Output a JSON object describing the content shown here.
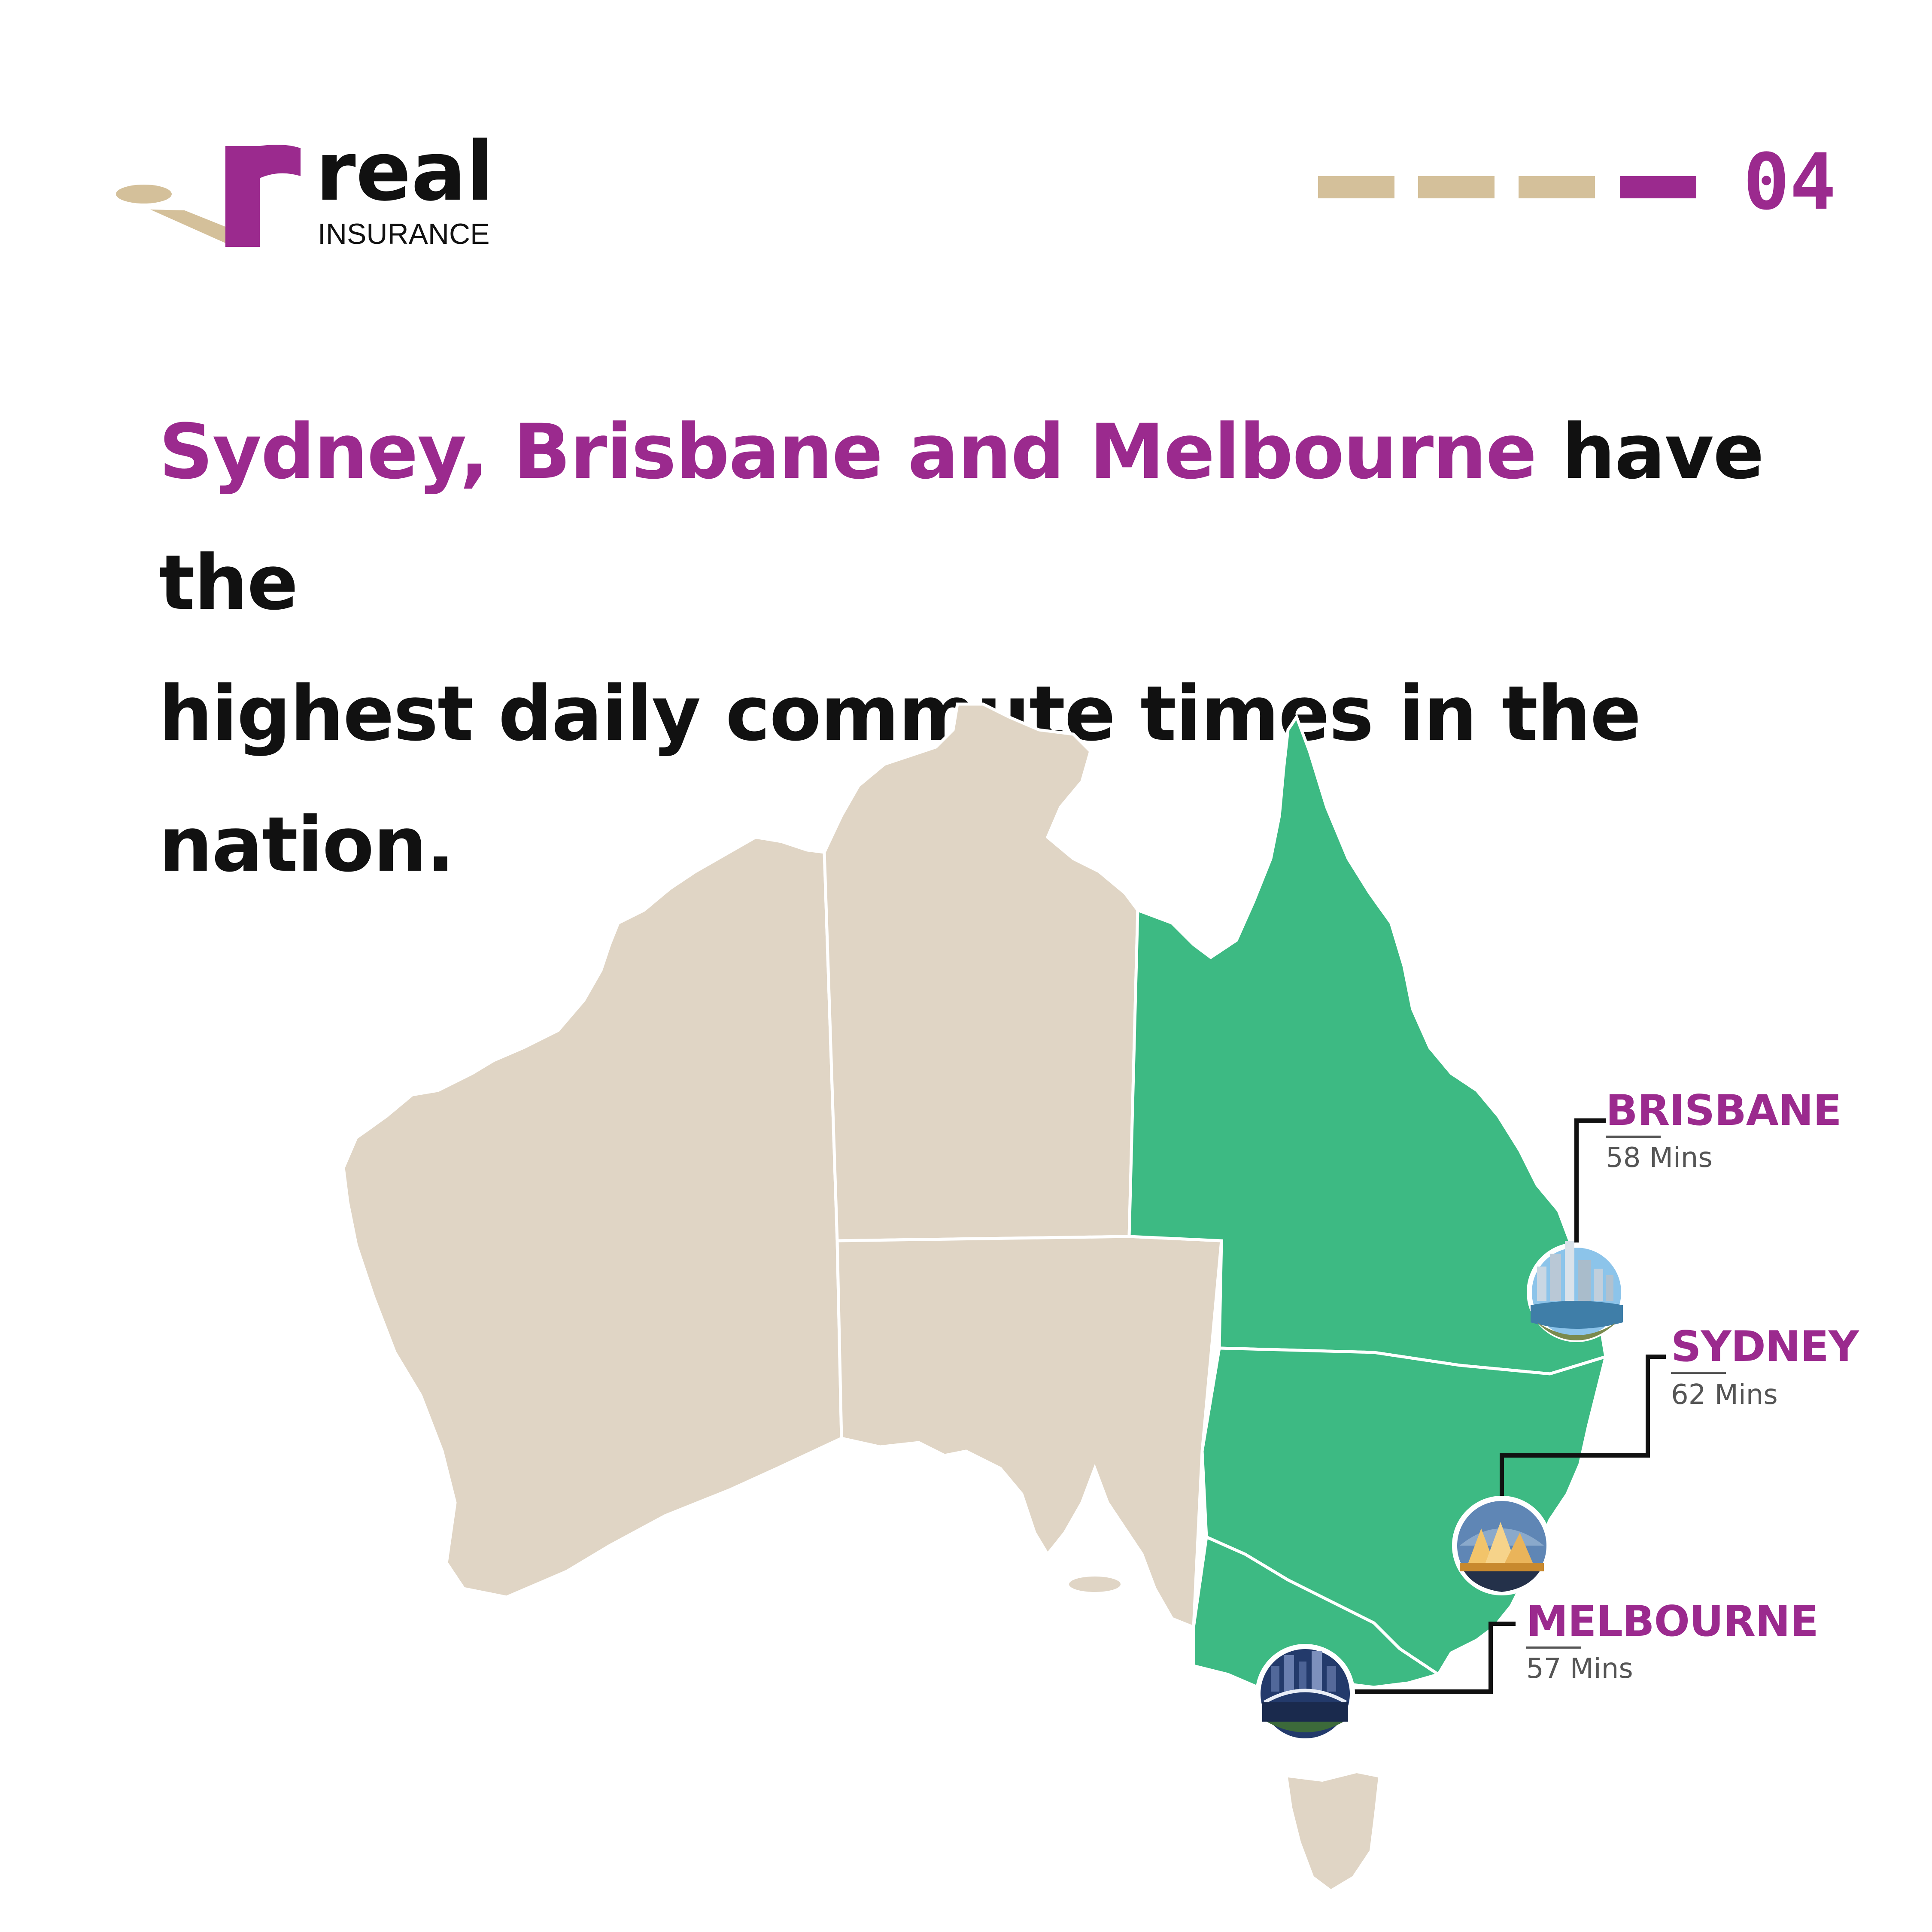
{
  "brand": {
    "name": "real",
    "tagline": "INSURANCE",
    "primary_color": "#9b2a8e",
    "gold_color": "#d4c09a"
  },
  "pagination": {
    "page_label": "04",
    "total_steps": 4,
    "active_step": 4
  },
  "headline": {
    "highlight": "Sydney, Brisbane and Melbourne",
    "rest_line1": " have the",
    "line2": "highest daily commute times in the nation."
  },
  "map": {
    "region_color": "#e0d5c5",
    "highlight_color": "#3dba83",
    "highlighted_states": [
      "Queensland",
      "New South Wales",
      "Victoria"
    ]
  },
  "cities": [
    {
      "name": "BRISBANE",
      "time": "58 Mins"
    },
    {
      "name": "SYDNEY",
      "time": "62 Mins"
    },
    {
      "name": "MELBOURNE",
      "time": "57 Mins"
    }
  ]
}
